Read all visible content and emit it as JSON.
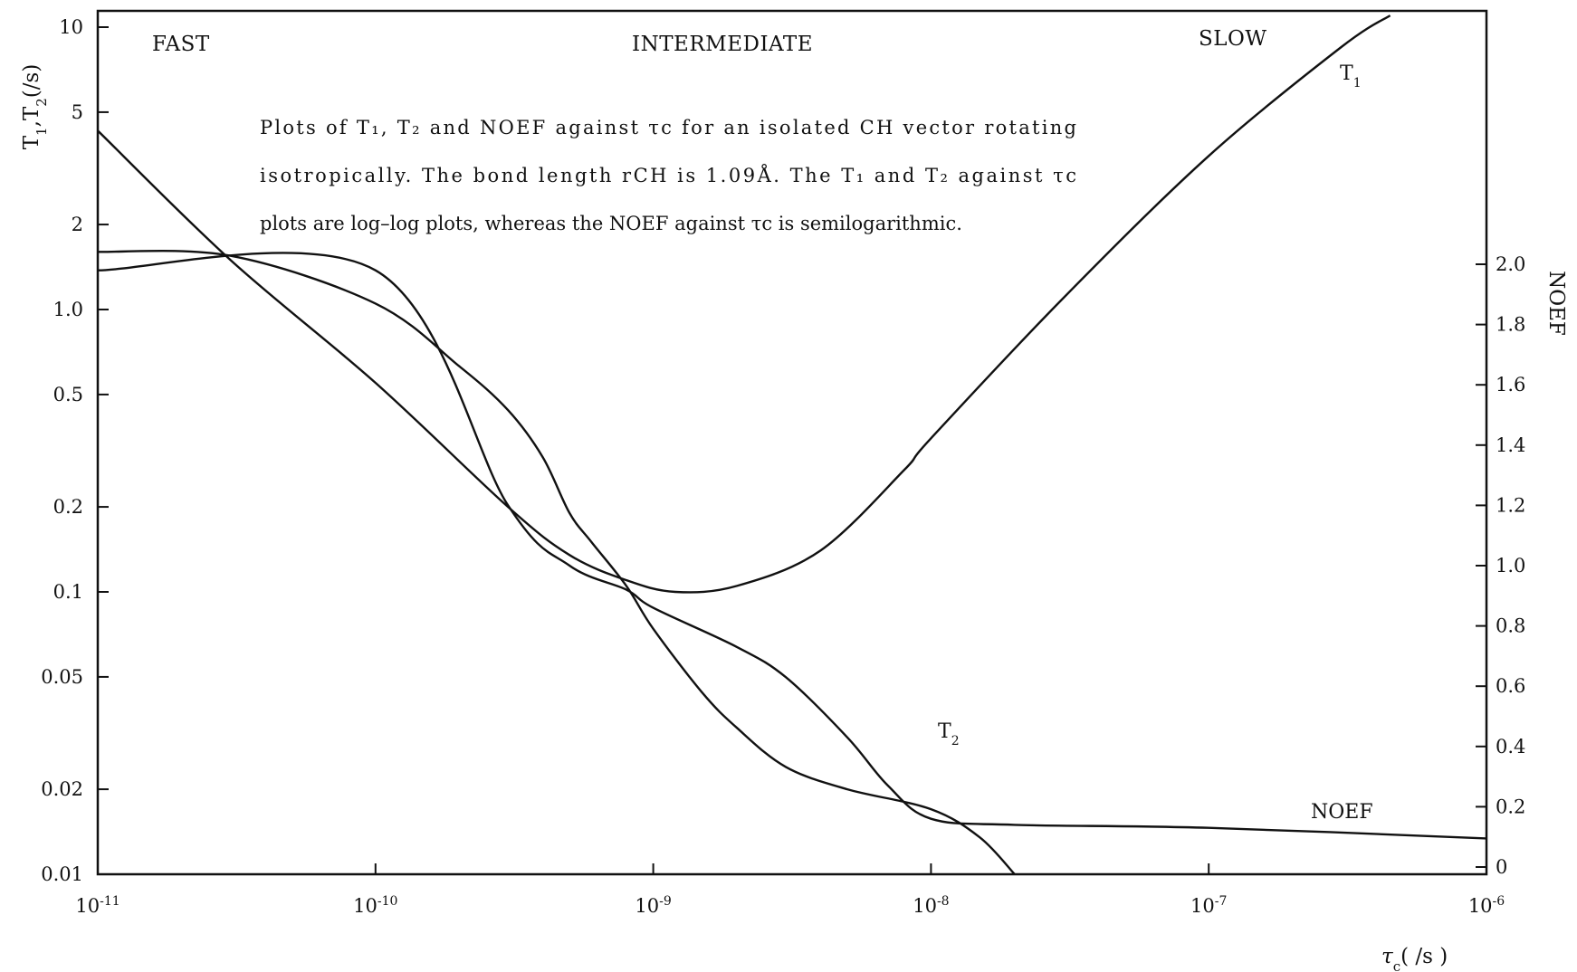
{
  "chart_data": {
    "type": "line",
    "x_scale": "log",
    "y_scale": "log",
    "y2_scale": "linear",
    "xlim": [
      1e-11,
      1e-06
    ],
    "ylim": [
      0.01,
      10
    ],
    "y2lim": [
      0,
      2.8
    ],
    "grid": false,
    "legend": "none",
    "x_tick_labels": [
      {
        "value": 1e-11,
        "base": "10",
        "exp": "-11"
      },
      {
        "value": 1e-10,
        "base": "10",
        "exp": "-10"
      },
      {
        "value": 1e-09,
        "base": "10",
        "exp": "-9"
      },
      {
        "value": 1e-08,
        "base": "10",
        "exp": "-8"
      },
      {
        "value": 1e-07,
        "base": "10",
        "exp": "-7"
      },
      {
        "value": 1e-06,
        "base": "10",
        "exp": "-6"
      }
    ],
    "y_tick_labels": [
      {
        "value": 10,
        "label": "10"
      },
      {
        "value": 5,
        "label": "5"
      },
      {
        "value": 2,
        "label": "2"
      },
      {
        "value": 1,
        "label": "1.0"
      },
      {
        "value": 0.5,
        "label": "0.5"
      },
      {
        "value": 0.2,
        "label": "0.2"
      },
      {
        "value": 0.1,
        "label": "0.1"
      },
      {
        "value": 0.05,
        "label": "0.05"
      },
      {
        "value": 0.02,
        "label": "0.02"
      },
      {
        "value": 0.01,
        "label": "0.01"
      }
    ],
    "y2_tick_labels": [
      {
        "value": 2.0,
        "label": "2.0"
      },
      {
        "value": 1.8,
        "label": "1.8"
      },
      {
        "value": 1.6,
        "label": "1.6"
      },
      {
        "value": 1.4,
        "label": "1.4"
      },
      {
        "value": 1.2,
        "label": "1.2"
      },
      {
        "value": 1.0,
        "label": "1.0"
      },
      {
        "value": 0.8,
        "label": "0.8"
      },
      {
        "value": 0.6,
        "label": "0.6"
      },
      {
        "value": 0.4,
        "label": "0.4"
      },
      {
        "value": 0.2,
        "label": "0.2"
      },
      {
        "value": 0,
        "label": "0"
      }
    ],
    "ylabel": {
      "parts": [
        "T",
        "1",
        ",T",
        "2",
        "(/s)"
      ]
    },
    "y2label": "NOEF",
    "xlabel": {
      "symbol": "τ",
      "sub": "c",
      "rest": "( /s )"
    },
    "region_labels": [
      "FAST",
      "INTERMEDIATE",
      "SLOW"
    ],
    "caption_lines": [
      "Plots of T₁, T₂ and NOEF against τc for an isolated CH vector rotating",
      "isotropically. The bond length rCH is 1.09Å. The T₁ and T₂ against τc",
      "plots are log–log plots, whereas the NOEF against τc is semilogarithmic."
    ],
    "series": [
      {
        "name": "T1",
        "label": {
          "main": "T",
          "sub": "1"
        },
        "axis": "left",
        "x": [
          1e-11,
          3e-11,
          1e-10,
          3e-10,
          5e-10,
          8e-10,
          1.2e-09,
          2e-09,
          4e-09,
          8e-09,
          1e-08,
          3e-08,
          1e-07,
          3e-07,
          4.5e-07
        ],
        "y": [
          4.3,
          1.5,
          0.55,
          0.2,
          0.135,
          0.11,
          0.1,
          0.105,
          0.14,
          0.27,
          0.35,
          1.1,
          3.5,
          8.5,
          11
        ]
      },
      {
        "name": "T2",
        "label": {
          "main": "T",
          "sub": "2"
        },
        "axis": "left",
        "x": [
          1e-11,
          3e-11,
          1e-10,
          2e-10,
          3e-10,
          4e-10,
          5e-10,
          6e-10,
          8e-10,
          1e-09,
          1.5e-09,
          2e-09,
          3e-09,
          5e-09,
          1e-08,
          1.5e-08,
          2e-08
        ],
        "y": [
          1.6,
          1.55,
          1.05,
          0.63,
          0.44,
          0.3,
          0.19,
          0.15,
          0.105,
          0.074,
          0.044,
          0.033,
          0.024,
          0.02,
          0.017,
          0.0135,
          0.01
        ]
      },
      {
        "name": "NOEF",
        "label": {
          "main": "NOEF",
          "sub": ""
        },
        "axis": "right",
        "x": [
          1e-11,
          1e-10,
          3e-10,
          5e-10,
          8e-10,
          1e-09,
          2e-09,
          3e-09,
          5e-09,
          7e-09,
          1e-08,
          2e-08,
          1e-07,
          1e-06
        ],
        "y": [
          1.98,
          1.98,
          1.2,
          1.0,
          0.92,
          0.86,
          0.73,
          0.63,
          0.43,
          0.27,
          0.16,
          0.14,
          0.13,
          0.095
        ]
      }
    ]
  }
}
